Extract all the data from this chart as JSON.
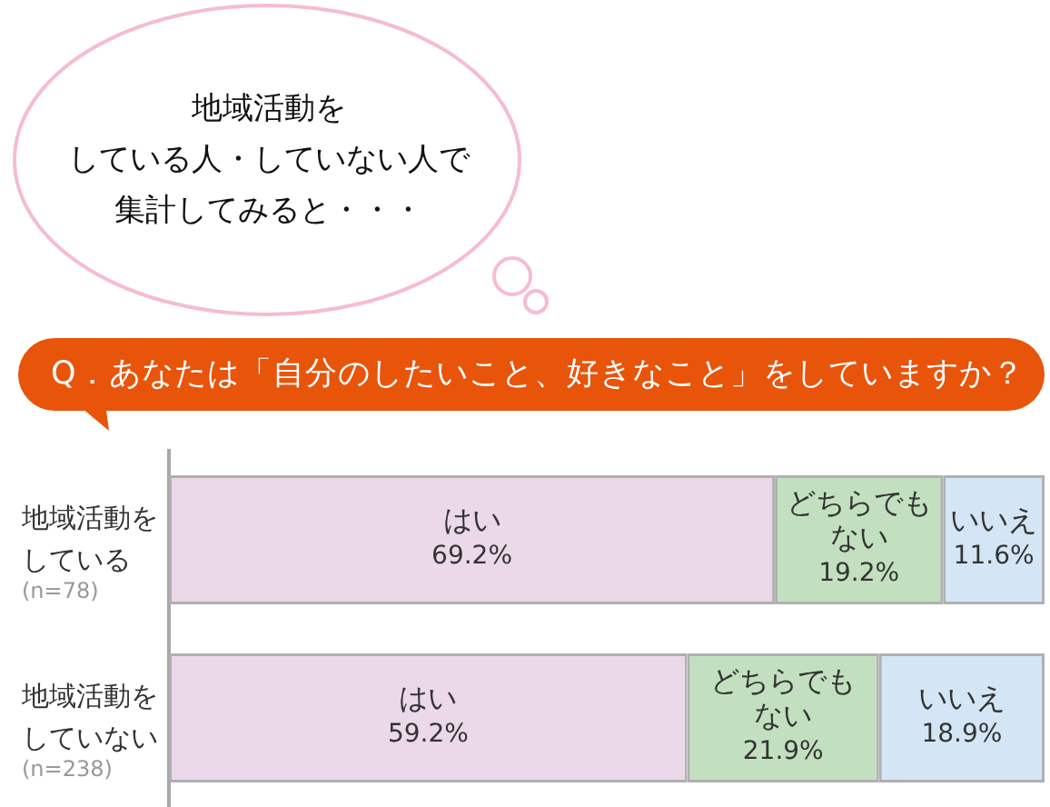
{
  "chart_data": {
    "type": "bar",
    "orientation": "horizontal",
    "stacked": true,
    "title": "Q．あなたは「自分のしたいこと、好きなこと」をしていますか？",
    "annotations": [
      "地域活動を",
      "している人・していない人で",
      "集計してみると・・・"
    ],
    "categories": [
      "地域活動をしている\n(n=78)",
      "地域活動をしていない\n(n=238)"
    ],
    "series": [
      {
        "name": "はい",
        "color": "#ebd8e8",
        "values": [
          69.2,
          59.2
        ],
        "value_labels": [
          "69.2%",
          "59.2%"
        ]
      },
      {
        "name": "どちらでもない",
        "color": "#c2e0bf",
        "values": [
          19.2,
          21.9
        ],
        "value_labels": [
          "19.2%",
          "21.9%"
        ]
      },
      {
        "name": "いいえ",
        "color": "#d4e6f5",
        "values": [
          11.6,
          18.9
        ],
        "value_labels": [
          "11.6%",
          "18.9%"
        ]
      }
    ],
    "xlim": [
      0,
      100
    ],
    "tick_labels": "y",
    "grid": false,
    "legend": false
  }
}
